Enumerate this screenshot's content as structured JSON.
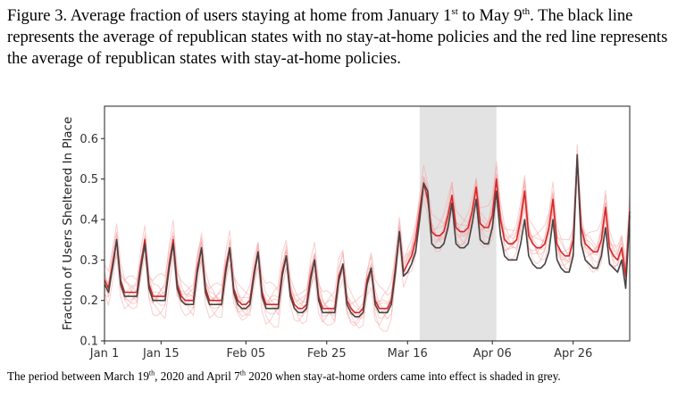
{
  "caption": {
    "p1": "Figure 3. Average fraction of users staying at home from January 1",
    "sup1": "st",
    "p2": " to May 9",
    "sup2": "th",
    "p3": ". The black line represents the average of republican states with no stay-at-home policies and the red line represents the average of republican states with stay-at-home policies."
  },
  "subcaption": {
    "p1": "The period between March 19",
    "sup1": "th",
    "p2": ", 2020 and April 7",
    "sup2": "th",
    "p3": " 2020 when stay-at-home orders came into effect is shaded in grey."
  },
  "colors": {
    "black_line": "#444444",
    "red_line": "#d62728",
    "faint_lines": "#f4a6a6",
    "shade": "#e3e3e3"
  },
  "chart_data": {
    "type": "line",
    "ylabel": "Fraction of Users Sheltered In Place",
    "ylim": [
      0.1,
      0.68
    ],
    "yticks": [
      0.1,
      0.2,
      0.3,
      0.4,
      0.5,
      0.6
    ],
    "x_start": "Jan 1",
    "x_range_days": [
      0,
      130
    ],
    "xtick_labels": [
      {
        "day": 0,
        "label": "Jan 1"
      },
      {
        "day": 14,
        "label": "Jan 15"
      },
      {
        "day": 35,
        "label": "Feb 05"
      },
      {
        "day": 55,
        "label": "Feb 25"
      },
      {
        "day": 75,
        "label": "Mar 16"
      },
      {
        "day": 96,
        "label": "Apr 06"
      },
      {
        "day": 116,
        "label": "Apr 26"
      }
    ],
    "shaded_region": {
      "start_day": 78,
      "end_day": 97
    },
    "series": [
      {
        "color": "#444444",
        "values": [
          0.24,
          0.22,
          0.28,
          0.35,
          0.24,
          0.21,
          0.21,
          0.21,
          0.21,
          0.28,
          0.34,
          0.23,
          0.2,
          0.2,
          0.2,
          0.2,
          0.28,
          0.34,
          0.23,
          0.2,
          0.19,
          0.19,
          0.19,
          0.27,
          0.33,
          0.22,
          0.19,
          0.19,
          0.19,
          0.19,
          0.27,
          0.33,
          0.22,
          0.19,
          0.18,
          0.18,
          0.19,
          0.26,
          0.32,
          0.21,
          0.18,
          0.18,
          0.18,
          0.18,
          0.26,
          0.31,
          0.21,
          0.18,
          0.17,
          0.17,
          0.18,
          0.25,
          0.3,
          0.2,
          0.17,
          0.17,
          0.17,
          0.17,
          0.25,
          0.29,
          0.19,
          0.17,
          0.16,
          0.16,
          0.17,
          0.24,
          0.28,
          0.19,
          0.17,
          0.17,
          0.17,
          0.19,
          0.27,
          0.37,
          0.26,
          0.27,
          0.29,
          0.32,
          0.4,
          0.49,
          0.47,
          0.34,
          0.33,
          0.33,
          0.34,
          0.38,
          0.44,
          0.34,
          0.33,
          0.33,
          0.34,
          0.39,
          0.45,
          0.35,
          0.34,
          0.34,
          0.38,
          0.47,
          0.36,
          0.31,
          0.3,
          0.3,
          0.3,
          0.34,
          0.4,
          0.31,
          0.29,
          0.28,
          0.28,
          0.29,
          0.32,
          0.4,
          0.3,
          0.28,
          0.27,
          0.27,
          0.31,
          0.56,
          0.34,
          0.3,
          0.29,
          0.28,
          0.28,
          0.31,
          0.38,
          0.29,
          0.28,
          0.27,
          0.3,
          0.23,
          0.41
        ]
      },
      {
        "color": "#d62728",
        "values": [
          0.25,
          0.23,
          0.29,
          0.35,
          0.25,
          0.22,
          0.22,
          0.22,
          0.22,
          0.29,
          0.35,
          0.24,
          0.21,
          0.21,
          0.21,
          0.21,
          0.29,
          0.35,
          0.24,
          0.21,
          0.2,
          0.2,
          0.2,
          0.28,
          0.33,
          0.23,
          0.2,
          0.2,
          0.2,
          0.2,
          0.28,
          0.33,
          0.23,
          0.2,
          0.19,
          0.19,
          0.2,
          0.27,
          0.32,
          0.22,
          0.19,
          0.19,
          0.19,
          0.19,
          0.27,
          0.31,
          0.22,
          0.19,
          0.18,
          0.18,
          0.19,
          0.26,
          0.3,
          0.21,
          0.18,
          0.18,
          0.18,
          0.18,
          0.26,
          0.29,
          0.2,
          0.18,
          0.17,
          0.17,
          0.18,
          0.25,
          0.28,
          0.2,
          0.18,
          0.18,
          0.18,
          0.2,
          0.28,
          0.37,
          0.27,
          0.29,
          0.31,
          0.35,
          0.42,
          0.49,
          0.45,
          0.37,
          0.36,
          0.36,
          0.37,
          0.41,
          0.46,
          0.38,
          0.37,
          0.37,
          0.38,
          0.42,
          0.48,
          0.39,
          0.38,
          0.38,
          0.41,
          0.5,
          0.4,
          0.35,
          0.34,
          0.34,
          0.35,
          0.4,
          0.47,
          0.36,
          0.34,
          0.33,
          0.33,
          0.34,
          0.38,
          0.45,
          0.34,
          0.32,
          0.31,
          0.31,
          0.35,
          0.55,
          0.38,
          0.34,
          0.33,
          0.32,
          0.32,
          0.35,
          0.43,
          0.33,
          0.31,
          0.3,
          0.33,
          0.26,
          0.42
        ]
      }
    ]
  }
}
